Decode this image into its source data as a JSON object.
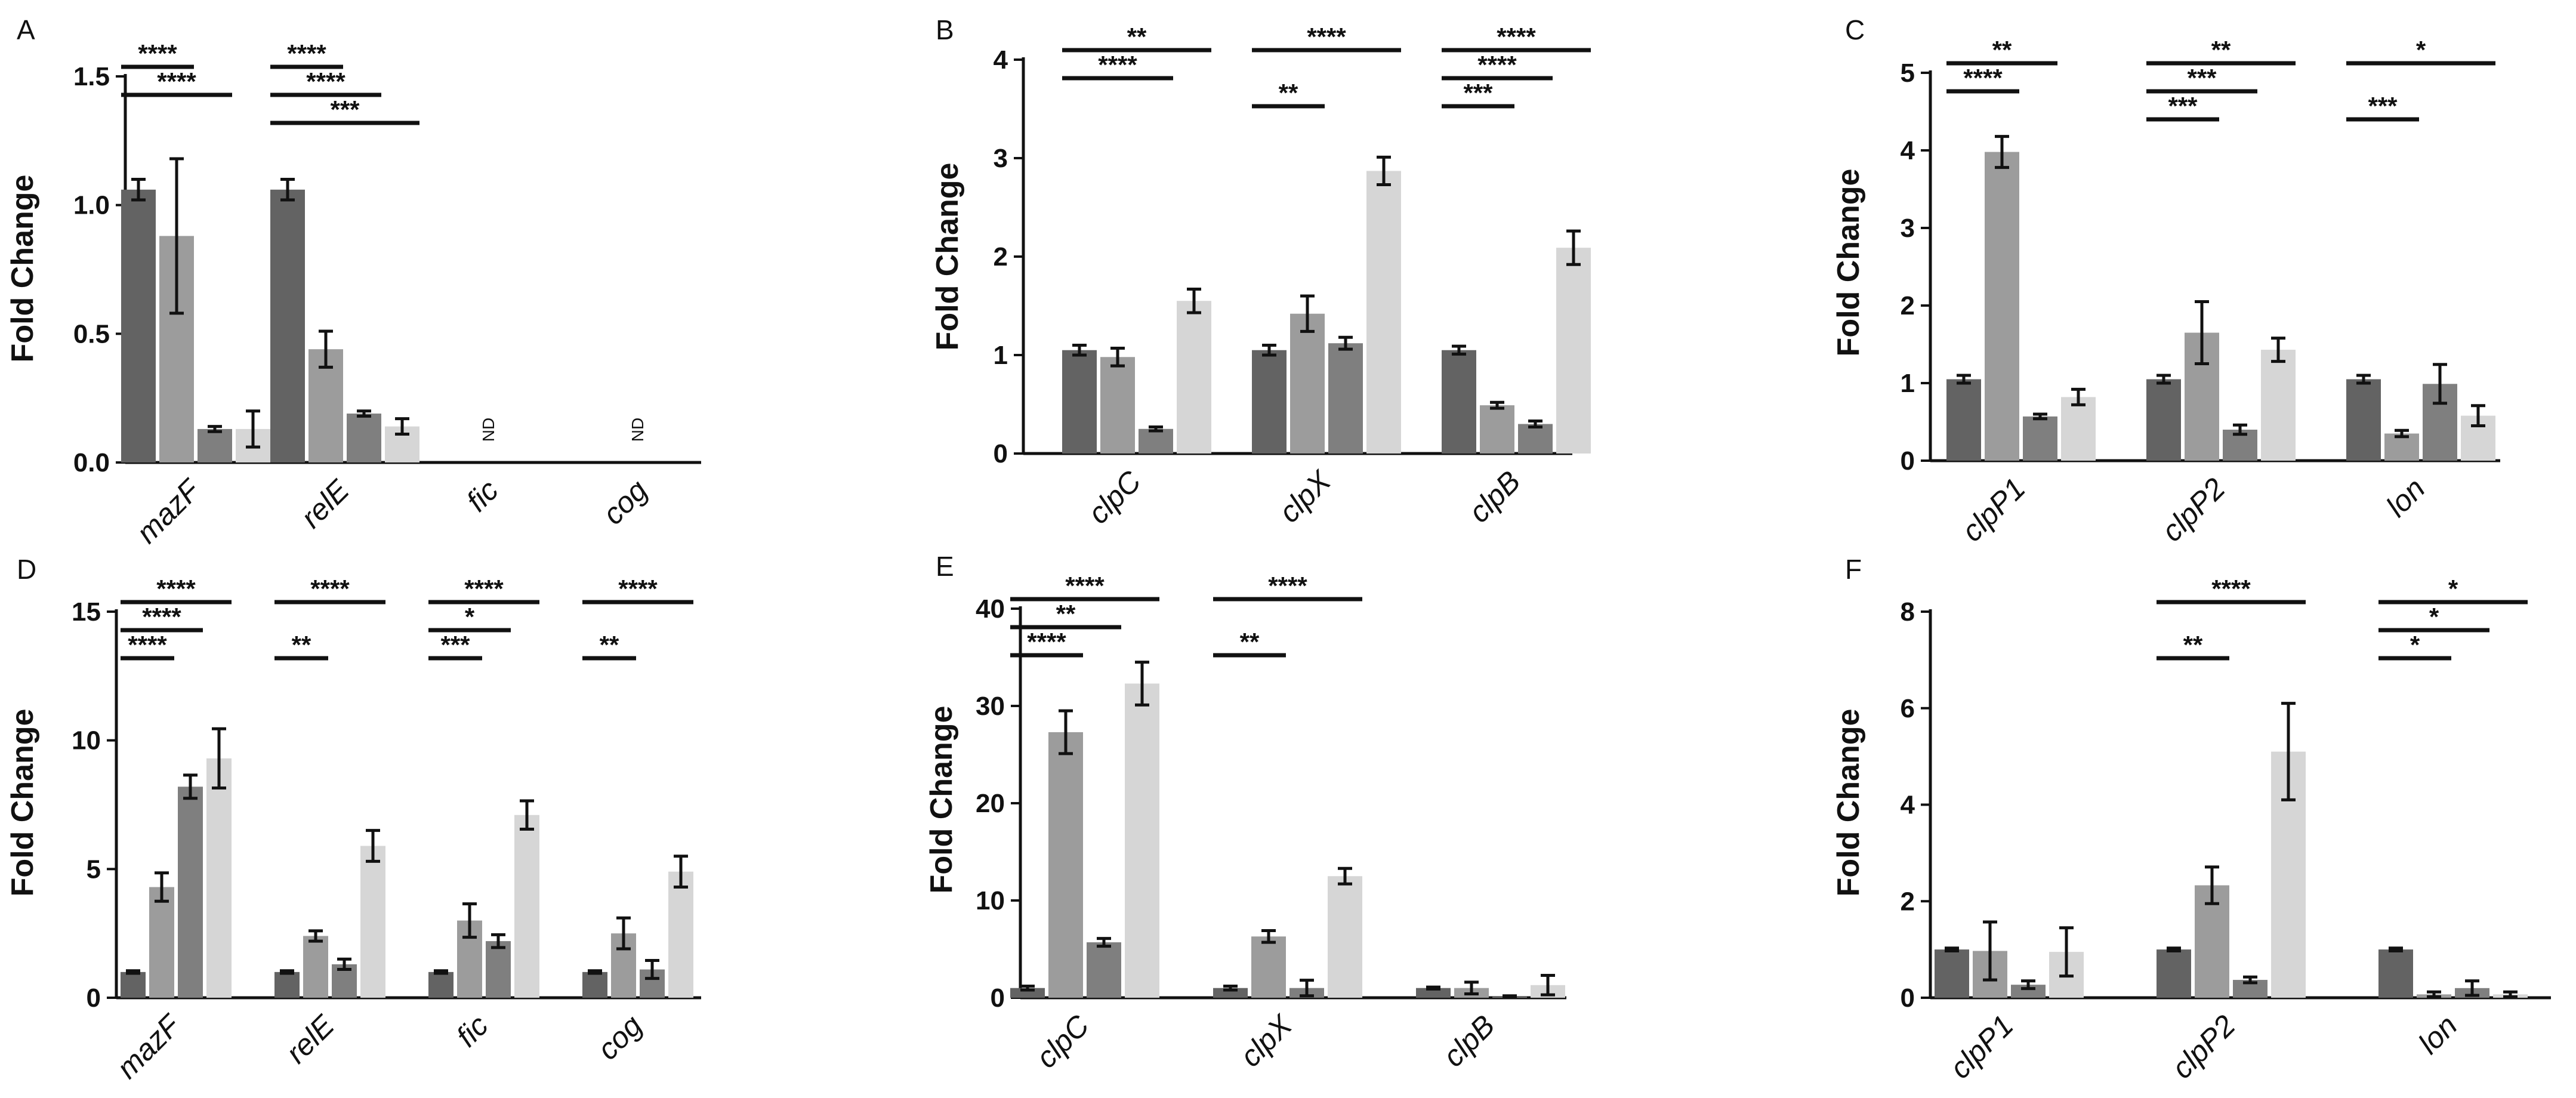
{
  "chart_data": [
    {
      "panel": "A",
      "type": "bar",
      "categories": [
        "mazF",
        "relE",
        "fic",
        "cog"
      ],
      "ylabel": "Fold Change",
      "ylim": [
        0,
        1.5
      ],
      "yticks": [
        0.0,
        0.5,
        1.0,
        1.5
      ],
      "ytick_labels": [
        "0.0",
        "0.5",
        "1.0",
        "1.5"
      ],
      "series_colors": [
        "#636363",
        "#9c9c9c",
        "#7f7f7f",
        "#d6d6d6"
      ],
      "values": [
        [
          1.06,
          0.88,
          0.13,
          0.13
        ],
        [
          1.06,
          0.44,
          0.19,
          0.14
        ],
        [
          0,
          0,
          0,
          0
        ],
        [
          0,
          0,
          0,
          0
        ]
      ],
      "errors": [
        [
          0.04,
          0.3,
          0.01,
          0.07
        ],
        [
          0.04,
          0.07,
          0.01,
          0.03
        ],
        [
          0,
          0,
          0,
          0
        ],
        [
          0,
          0,
          0,
          0
        ]
      ],
      "not_detected": [
        {
          "category": 2,
          "text": "ND"
        },
        {
          "category": 3,
          "text": "ND"
        }
      ],
      "significance": [
        {
          "cat": 0,
          "from": 0,
          "to": 1,
          "text": "****",
          "level": 0
        },
        {
          "cat": 0,
          "from": 0,
          "to": 2,
          "text": "****",
          "level": 1
        },
        {
          "cat": 1,
          "from": 0,
          "to": 1,
          "text": "****",
          "level": 0
        },
        {
          "cat": 1,
          "from": 0,
          "to": 2,
          "text": "****",
          "level": 1
        },
        {
          "cat": 1,
          "from": 0,
          "to": 3,
          "text": "***",
          "level": 2
        }
      ]
    },
    {
      "panel": "B",
      "type": "bar",
      "categories": [
        "clpC",
        "clpX",
        "clpB"
      ],
      "ylabel": "Fold Change",
      "ylim": [
        0,
        4
      ],
      "yticks": [
        0,
        1,
        2,
        3,
        4
      ],
      "ytick_labels": [
        "0",
        "1",
        "2",
        "3",
        "4"
      ],
      "series_colors": [
        "#636363",
        "#9c9c9c",
        "#7f7f7f",
        "#d6d6d6"
      ],
      "values": [
        [
          1.05,
          0.98,
          0.25,
          1.55
        ],
        [
          1.05,
          1.42,
          1.12,
          2.87
        ],
        [
          1.05,
          0.49,
          0.3,
          2.09
        ]
      ],
      "errors": [
        [
          0.05,
          0.09,
          0.02,
          0.12
        ],
        [
          0.05,
          0.18,
          0.06,
          0.14
        ],
        [
          0.04,
          0.03,
          0.03,
          0.17
        ]
      ],
      "not_detected": [],
      "significance": [
        {
          "cat": 0,
          "from": 0,
          "to": 3,
          "text": "**",
          "level": 0
        },
        {
          "cat": 0,
          "from": 0,
          "to": 2,
          "text": "****",
          "level": 1
        },
        {
          "cat": 1,
          "from": 0,
          "to": 3,
          "text": "****",
          "level": 0
        },
        {
          "cat": 1,
          "from": 0,
          "to": 1,
          "text": "**",
          "level": 2
        },
        {
          "cat": 2,
          "from": 0,
          "to": 3,
          "text": "****",
          "level": 0
        },
        {
          "cat": 2,
          "from": 0,
          "to": 2,
          "text": "****",
          "level": 1
        },
        {
          "cat": 2,
          "from": 0,
          "to": 1,
          "text": "***",
          "level": 2
        }
      ]
    },
    {
      "panel": "C",
      "type": "bar",
      "categories": [
        "clpP1",
        "clpP2",
        "lon"
      ],
      "ylabel": "Fold Change",
      "ylim": [
        0,
        5
      ],
      "yticks": [
        0,
        1,
        2,
        3,
        4,
        5
      ],
      "ytick_labels": [
        "0",
        "1",
        "2",
        "3",
        "4",
        "5"
      ],
      "series_colors": [
        "#636363",
        "#9c9c9c",
        "#7f7f7f",
        "#d6d6d6"
      ],
      "values": [
        [
          1.05,
          3.98,
          0.57,
          0.82
        ],
        [
          1.05,
          1.65,
          0.4,
          1.43
        ],
        [
          1.05,
          0.35,
          0.99,
          0.58
        ]
      ],
      "errors": [
        [
          0.05,
          0.2,
          0.03,
          0.1
        ],
        [
          0.05,
          0.4,
          0.06,
          0.15
        ],
        [
          0.05,
          0.04,
          0.25,
          0.13
        ]
      ],
      "not_detected": [],
      "significance": [
        {
          "cat": 0,
          "from": 0,
          "to": 2,
          "text": "**",
          "level": 0
        },
        {
          "cat": 0,
          "from": 0,
          "to": 1,
          "text": "****",
          "level": 1
        },
        {
          "cat": 1,
          "from": 0,
          "to": 3,
          "text": "**",
          "level": 0
        },
        {
          "cat": 1,
          "from": 0,
          "to": 2,
          "text": "***",
          "level": 1
        },
        {
          "cat": 1,
          "from": 0,
          "to": 1,
          "text": "***",
          "level": 2
        },
        {
          "cat": 2,
          "from": 0,
          "to": 3,
          "text": "*",
          "level": 0
        },
        {
          "cat": 2,
          "from": 0,
          "to": 1,
          "text": "***",
          "level": 2
        }
      ]
    },
    {
      "panel": "D",
      "type": "bar",
      "categories": [
        "mazF",
        "relE",
        "fic",
        "cog"
      ],
      "ylabel": "Fold Change",
      "ylim": [
        0,
        15
      ],
      "yticks": [
        0,
        5,
        10,
        15
      ],
      "ytick_labels": [
        "0",
        "5",
        "10",
        "15"
      ],
      "series_colors": [
        "#636363",
        "#9c9c9c",
        "#7f7f7f",
        "#d6d6d6"
      ],
      "values": [
        [
          1.0,
          4.3,
          8.2,
          9.3
        ],
        [
          1.0,
          2.4,
          1.3,
          5.9
        ],
        [
          1.0,
          3.0,
          2.2,
          7.1
        ],
        [
          1.0,
          2.5,
          1.1,
          4.9
        ]
      ],
      "errors": [
        [
          0.05,
          0.55,
          0.45,
          1.15
        ],
        [
          0.05,
          0.2,
          0.2,
          0.6
        ],
        [
          0.05,
          0.65,
          0.25,
          0.55
        ],
        [
          0.05,
          0.6,
          0.35,
          0.6
        ]
      ],
      "not_detected": [],
      "significance": [
        {
          "cat": 0,
          "from": 0,
          "to": 3,
          "text": "****",
          "level": 0
        },
        {
          "cat": 0,
          "from": 0,
          "to": 2,
          "text": "****",
          "level": 1
        },
        {
          "cat": 0,
          "from": 0,
          "to": 1,
          "text": "****",
          "level": 2
        },
        {
          "cat": 1,
          "from": 0,
          "to": 3,
          "text": "****",
          "level": 0
        },
        {
          "cat": 1,
          "from": 0,
          "to": 1,
          "text": "**",
          "level": 2
        },
        {
          "cat": 2,
          "from": 0,
          "to": 3,
          "text": "****",
          "level": 0
        },
        {
          "cat": 2,
          "from": 0,
          "to": 2,
          "text": "*",
          "level": 1
        },
        {
          "cat": 2,
          "from": 0,
          "to": 1,
          "text": "***",
          "level": 2
        },
        {
          "cat": 3,
          "from": 0,
          "to": 3,
          "text": "****",
          "level": 0
        },
        {
          "cat": 3,
          "from": 0,
          "to": 1,
          "text": "**",
          "level": 2
        }
      ]
    },
    {
      "panel": "E",
      "type": "bar",
      "categories": [
        "clpC",
        "clpX",
        "clpB"
      ],
      "ylabel": "Fold Change",
      "ylim": [
        0,
        40
      ],
      "yticks": [
        0,
        10,
        20,
        30,
        40
      ],
      "ytick_labels": [
        "0",
        "10",
        "20",
        "30",
        "40"
      ],
      "series_colors": [
        "#636363",
        "#9c9c9c",
        "#7f7f7f",
        "#d6d6d6"
      ],
      "values": [
        [
          1.0,
          27.3,
          5.7,
          32.3
        ],
        [
          1.0,
          6.3,
          1.0,
          12.5
        ],
        [
          1.0,
          1.0,
          0.1,
          1.3
        ]
      ],
      "errors": [
        [
          0.2,
          2.2,
          0.4,
          2.2
        ],
        [
          0.2,
          0.6,
          0.8,
          0.8
        ],
        [
          0.1,
          0.6,
          0.1,
          1.0
        ]
      ],
      "not_detected": [],
      "significance": [
        {
          "cat": 0,
          "from": 0,
          "to": 3,
          "text": "****",
          "level": 0
        },
        {
          "cat": 0,
          "from": 0,
          "to": 2,
          "text": "**",
          "level": 1
        },
        {
          "cat": 0,
          "from": 0,
          "to": 1,
          "text": "****",
          "level": 2
        },
        {
          "cat": 1,
          "from": 0,
          "to": 3,
          "text": "****",
          "level": 0
        },
        {
          "cat": 1,
          "from": 0,
          "to": 1,
          "text": "**",
          "level": 2
        }
      ]
    },
    {
      "panel": "F",
      "type": "bar",
      "categories": [
        "clpP1",
        "clpP2",
        "lon"
      ],
      "ylabel": "Fold Change",
      "ylim": [
        0,
        8
      ],
      "yticks": [
        0,
        2,
        4,
        6,
        8
      ],
      "ytick_labels": [
        "0",
        "2",
        "4",
        "6",
        "8"
      ],
      "series_colors": [
        "#636363",
        "#9c9c9c",
        "#7f7f7f",
        "#d6d6d6"
      ],
      "values": [
        [
          1.0,
          0.97,
          0.27,
          0.95
        ],
        [
          1.0,
          2.33,
          0.37,
          5.1
        ],
        [
          1.0,
          0.07,
          0.2,
          0.07
        ]
      ],
      "errors": [
        [
          0.03,
          0.6,
          0.08,
          0.5
        ],
        [
          0.03,
          0.38,
          0.06,
          1.0
        ],
        [
          0.03,
          0.05,
          0.15,
          0.05
        ]
      ],
      "not_detected": [],
      "significance": [
        {
          "cat": 1,
          "from": 0,
          "to": 3,
          "text": "****",
          "level": 0
        },
        {
          "cat": 1,
          "from": 0,
          "to": 1,
          "text": "**",
          "level": 2
        },
        {
          "cat": 2,
          "from": 0,
          "to": 3,
          "text": "*",
          "level": 0
        },
        {
          "cat": 2,
          "from": 0,
          "to": 2,
          "text": "*",
          "level": 1
        },
        {
          "cat": 2,
          "from": 0,
          "to": 1,
          "text": "*",
          "level": 2
        }
      ]
    }
  ]
}
